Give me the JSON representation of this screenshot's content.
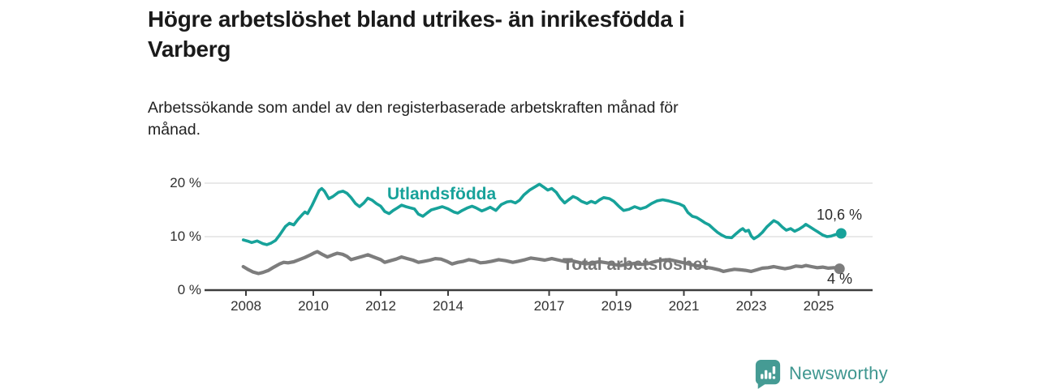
{
  "header": {
    "title_lines": [
      "Högre arbetslöshet bland utrikes- än inrikesfödda i",
      "Varberg"
    ],
    "subtitle_lines": [
      "Arbetssökande som andel av den registerbaserade arbetskraften månad för",
      "månad."
    ]
  },
  "chart_data": {
    "type": "line",
    "title": "Högre arbetslöshet bland utrikes- än inrikesfödda i Varberg",
    "subtitle": "Arbetssökande som andel av den registerbaserade arbetskraften månad för månad.",
    "unit": "percent",
    "grid": "horizontal",
    "legend_position": "inline-labels",
    "xlim": [
      2007.8,
      2026.4
    ],
    "ylim": [
      0,
      22
    ],
    "x_ticks": [
      {
        "year": 2008,
        "label": "2008"
      },
      {
        "year": 2010,
        "label": "2010"
      },
      {
        "year": 2012,
        "label": "2012"
      },
      {
        "year": 2014,
        "label": "2014"
      },
      {
        "year": 2017,
        "label": "2017"
      },
      {
        "year": 2019,
        "label": "2019"
      },
      {
        "year": 2021,
        "label": "2021"
      },
      {
        "year": 2023,
        "label": "2023"
      },
      {
        "year": 2025,
        "label": "2025"
      }
    ],
    "y_ticks": [
      {
        "value": 0,
        "label": "0 %"
      },
      {
        "value": 10,
        "label": "10 %"
      },
      {
        "value": 20,
        "label": "20 %"
      }
    ],
    "series": [
      {
        "name": "Utlandsfödda",
        "color": "#17a29a",
        "end_label": "10,6 %",
        "end_value": 10.6,
        "points": [
          [
            2007.92,
            9.4
          ],
          [
            2008.08,
            9.1
          ],
          [
            2008.17,
            8.9
          ],
          [
            2008.33,
            9.2
          ],
          [
            2008.5,
            8.7
          ],
          [
            2008.62,
            8.5
          ],
          [
            2008.75,
            8.8
          ],
          [
            2008.88,
            9.3
          ],
          [
            2009.0,
            10.3
          ],
          [
            2009.17,
            11.9
          ],
          [
            2009.29,
            12.5
          ],
          [
            2009.42,
            12.2
          ],
          [
            2009.54,
            13.2
          ],
          [
            2009.67,
            14.1
          ],
          [
            2009.75,
            14.6
          ],
          [
            2009.83,
            14.3
          ],
          [
            2009.96,
            15.8
          ],
          [
            2010.08,
            17.4
          ],
          [
            2010.17,
            18.6
          ],
          [
            2010.25,
            19.0
          ],
          [
            2010.33,
            18.5
          ],
          [
            2010.46,
            17.1
          ],
          [
            2010.58,
            17.5
          ],
          [
            2010.75,
            18.3
          ],
          [
            2010.88,
            18.5
          ],
          [
            2011.0,
            18.1
          ],
          [
            2011.12,
            17.3
          ],
          [
            2011.25,
            16.2
          ],
          [
            2011.37,
            15.6
          ],
          [
            2011.5,
            16.3
          ],
          [
            2011.62,
            17.2
          ],
          [
            2011.75,
            16.8
          ],
          [
            2011.87,
            16.2
          ],
          [
            2012.0,
            15.7
          ],
          [
            2012.12,
            14.7
          ],
          [
            2012.25,
            14.3
          ],
          [
            2012.37,
            14.9
          ],
          [
            2012.5,
            15.4
          ],
          [
            2012.62,
            15.9
          ],
          [
            2012.75,
            15.6
          ],
          [
            2012.87,
            15.4
          ],
          [
            2013.0,
            15.2
          ],
          [
            2013.12,
            14.2
          ],
          [
            2013.25,
            13.8
          ],
          [
            2013.37,
            14.4
          ],
          [
            2013.5,
            15.0
          ],
          [
            2013.67,
            15.3
          ],
          [
            2013.83,
            15.6
          ],
          [
            2014.0,
            15.2
          ],
          [
            2014.17,
            14.6
          ],
          [
            2014.29,
            14.4
          ],
          [
            2014.42,
            14.9
          ],
          [
            2014.58,
            15.4
          ],
          [
            2014.71,
            15.7
          ],
          [
            2014.83,
            15.4
          ],
          [
            2015.0,
            14.8
          ],
          [
            2015.12,
            15.1
          ],
          [
            2015.25,
            15.5
          ],
          [
            2015.42,
            14.9
          ],
          [
            2015.58,
            16.0
          ],
          [
            2015.75,
            16.5
          ],
          [
            2015.87,
            16.6
          ],
          [
            2016.0,
            16.3
          ],
          [
            2016.12,
            16.8
          ],
          [
            2016.25,
            17.8
          ],
          [
            2016.42,
            18.7
          ],
          [
            2016.58,
            19.3
          ],
          [
            2016.71,
            19.8
          ],
          [
            2016.83,
            19.3
          ],
          [
            2016.96,
            18.7
          ],
          [
            2017.08,
            19.0
          ],
          [
            2017.21,
            18.3
          ],
          [
            2017.33,
            17.2
          ],
          [
            2017.46,
            16.3
          ],
          [
            2017.58,
            16.9
          ],
          [
            2017.71,
            17.5
          ],
          [
            2017.83,
            17.2
          ],
          [
            2017.96,
            16.6
          ],
          [
            2018.12,
            16.2
          ],
          [
            2018.25,
            16.6
          ],
          [
            2018.37,
            16.3
          ],
          [
            2018.5,
            16.9
          ],
          [
            2018.62,
            17.3
          ],
          [
            2018.79,
            17.1
          ],
          [
            2018.92,
            16.6
          ],
          [
            2019.08,
            15.6
          ],
          [
            2019.21,
            14.9
          ],
          [
            2019.37,
            15.1
          ],
          [
            2019.54,
            15.6
          ],
          [
            2019.71,
            15.2
          ],
          [
            2019.87,
            15.5
          ],
          [
            2020.04,
            16.2
          ],
          [
            2020.21,
            16.7
          ],
          [
            2020.37,
            16.9
          ],
          [
            2020.54,
            16.7
          ],
          [
            2020.71,
            16.4
          ],
          [
            2020.87,
            16.1
          ],
          [
            2021.0,
            15.7
          ],
          [
            2021.12,
            14.5
          ],
          [
            2021.25,
            13.8
          ],
          [
            2021.37,
            13.6
          ],
          [
            2021.5,
            13.1
          ],
          [
            2021.62,
            12.6
          ],
          [
            2021.75,
            12.2
          ],
          [
            2021.87,
            11.5
          ],
          [
            2022.0,
            10.8
          ],
          [
            2022.12,
            10.3
          ],
          [
            2022.25,
            9.9
          ],
          [
            2022.42,
            9.8
          ],
          [
            2022.54,
            10.5
          ],
          [
            2022.67,
            11.2
          ],
          [
            2022.75,
            11.5
          ],
          [
            2022.83,
            11.0
          ],
          [
            2022.92,
            11.2
          ],
          [
            2023.0,
            10.1
          ],
          [
            2023.08,
            9.6
          ],
          [
            2023.21,
            10.1
          ],
          [
            2023.33,
            10.8
          ],
          [
            2023.46,
            11.8
          ],
          [
            2023.58,
            12.5
          ],
          [
            2023.67,
            13.0
          ],
          [
            2023.79,
            12.6
          ],
          [
            2023.92,
            11.8
          ],
          [
            2024.04,
            11.2
          ],
          [
            2024.17,
            11.5
          ],
          [
            2024.29,
            11.0
          ],
          [
            2024.42,
            11.4
          ],
          [
            2024.54,
            11.9
          ],
          [
            2024.62,
            12.3
          ],
          [
            2024.75,
            11.8
          ],
          [
            2024.87,
            11.3
          ],
          [
            2025.0,
            10.8
          ],
          [
            2025.12,
            10.3
          ],
          [
            2025.25,
            10.0
          ],
          [
            2025.37,
            10.1
          ],
          [
            2025.5,
            10.4
          ],
          [
            2025.67,
            10.6
          ]
        ]
      },
      {
        "name": "Total arbetslöshet",
        "color": "#7d7d7d",
        "end_label": "4 %",
        "end_value": 4.0,
        "points": [
          [
            2007.92,
            4.4
          ],
          [
            2008.08,
            3.8
          ],
          [
            2008.21,
            3.4
          ],
          [
            2008.37,
            3.1
          ],
          [
            2008.5,
            3.3
          ],
          [
            2008.67,
            3.7
          ],
          [
            2008.83,
            4.3
          ],
          [
            2009.0,
            4.9
          ],
          [
            2009.12,
            5.2
          ],
          [
            2009.25,
            5.1
          ],
          [
            2009.42,
            5.3
          ],
          [
            2009.58,
            5.7
          ],
          [
            2009.75,
            6.1
          ],
          [
            2009.92,
            6.6
          ],
          [
            2010.04,
            7.0
          ],
          [
            2010.12,
            7.2
          ],
          [
            2010.29,
            6.6
          ],
          [
            2010.42,
            6.2
          ],
          [
            2010.58,
            6.6
          ],
          [
            2010.71,
            6.9
          ],
          [
            2010.87,
            6.7
          ],
          [
            2011.0,
            6.3
          ],
          [
            2011.12,
            5.7
          ],
          [
            2011.29,
            6.0
          ],
          [
            2011.46,
            6.3
          ],
          [
            2011.62,
            6.6
          ],
          [
            2011.79,
            6.2
          ],
          [
            2012.0,
            5.7
          ],
          [
            2012.12,
            5.2
          ],
          [
            2012.29,
            5.5
          ],
          [
            2012.46,
            5.8
          ],
          [
            2012.62,
            6.2
          ],
          [
            2012.79,
            5.9
          ],
          [
            2012.96,
            5.6
          ],
          [
            2013.12,
            5.2
          ],
          [
            2013.29,
            5.4
          ],
          [
            2013.46,
            5.6
          ],
          [
            2013.62,
            5.9
          ],
          [
            2013.79,
            5.8
          ],
          [
            2013.96,
            5.4
          ],
          [
            2014.12,
            4.9
          ],
          [
            2014.29,
            5.2
          ],
          [
            2014.46,
            5.4
          ],
          [
            2014.62,
            5.7
          ],
          [
            2014.79,
            5.5
          ],
          [
            2014.96,
            5.1
          ],
          [
            2015.12,
            5.2
          ],
          [
            2015.29,
            5.4
          ],
          [
            2015.5,
            5.7
          ],
          [
            2015.71,
            5.5
          ],
          [
            2015.92,
            5.2
          ],
          [
            2016.08,
            5.4
          ],
          [
            2016.29,
            5.7
          ],
          [
            2016.46,
            6.0
          ],
          [
            2016.67,
            5.8
          ],
          [
            2016.87,
            5.6
          ],
          [
            2017.08,
            5.9
          ],
          [
            2017.29,
            5.6
          ],
          [
            2017.5,
            5.3
          ],
          [
            2017.67,
            5.5
          ],
          [
            2017.87,
            5.2
          ],
          [
            2018.08,
            4.9
          ],
          [
            2018.29,
            5.1
          ],
          [
            2018.5,
            5.3
          ],
          [
            2018.71,
            5.1
          ],
          [
            2018.92,
            4.8
          ],
          [
            2019.12,
            4.6
          ],
          [
            2019.33,
            4.8
          ],
          [
            2019.54,
            5.0
          ],
          [
            2019.75,
            4.8
          ],
          [
            2019.96,
            5.0
          ],
          [
            2020.17,
            5.4
          ],
          [
            2020.37,
            5.6
          ],
          [
            2020.58,
            5.7
          ],
          [
            2020.79,
            5.4
          ],
          [
            2021.0,
            5.1
          ],
          [
            2021.21,
            4.8
          ],
          [
            2021.42,
            4.5
          ],
          [
            2021.62,
            4.3
          ],
          [
            2021.83,
            4.1
          ],
          [
            2022.04,
            3.8
          ],
          [
            2022.17,
            3.5
          ],
          [
            2022.33,
            3.7
          ],
          [
            2022.5,
            3.9
          ],
          [
            2022.67,
            3.8
          ],
          [
            2022.83,
            3.7
          ],
          [
            2023.0,
            3.5
          ],
          [
            2023.17,
            3.8
          ],
          [
            2023.33,
            4.1
          ],
          [
            2023.5,
            4.2
          ],
          [
            2023.67,
            4.4
          ],
          [
            2023.83,
            4.2
          ],
          [
            2024.0,
            4.0
          ],
          [
            2024.17,
            4.2
          ],
          [
            2024.33,
            4.5
          ],
          [
            2024.5,
            4.4
          ],
          [
            2024.62,
            4.6
          ],
          [
            2024.79,
            4.4
          ],
          [
            2024.96,
            4.2
          ],
          [
            2025.12,
            4.3
          ],
          [
            2025.29,
            4.1
          ],
          [
            2025.46,
            4.2
          ],
          [
            2025.62,
            4.0
          ]
        ]
      }
    ],
    "colors": {
      "axis": "#3d3d3d",
      "gridline": "#dcdcdc",
      "tick_text": "#303030"
    }
  },
  "footer": {
    "brand": "Newsworthy",
    "brand_color": "#3e968f",
    "logo_icon": "bar-chart-speech-bubble-icon"
  }
}
